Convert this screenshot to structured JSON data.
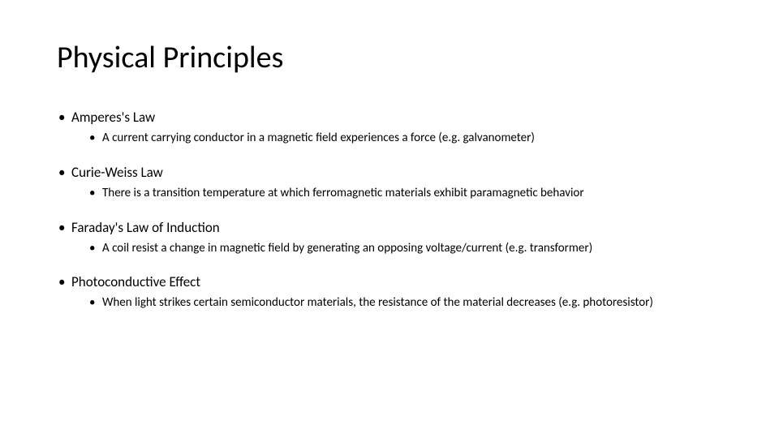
{
  "slide": {
    "title": "Physical Principles",
    "background_color": "#ffffff",
    "text_color": "#000000",
    "title_fontsize": 38,
    "body_fontsize": 17,
    "sub_fontsize": 15,
    "principles": [
      {
        "name": "Amperes's Law",
        "detail": "A current carrying conductor in a magnetic field experiences a force (e.g. galvanometer)"
      },
      {
        "name": "Curie-Weiss Law",
        "detail": "There is a transition temperature at which ferromagnetic materials exhibit paramagnetic behavior"
      },
      {
        "name": "Faraday's Law of Induction",
        "detail": "A coil resist a change in magnetic field by generating an opposing voltage/current (e.g. transformer)"
      },
      {
        "name": "Photoconductive Effect",
        "detail": "When light strikes certain semiconductor materials, the resistance of the material decreases (e.g. photoresistor)"
      }
    ]
  }
}
